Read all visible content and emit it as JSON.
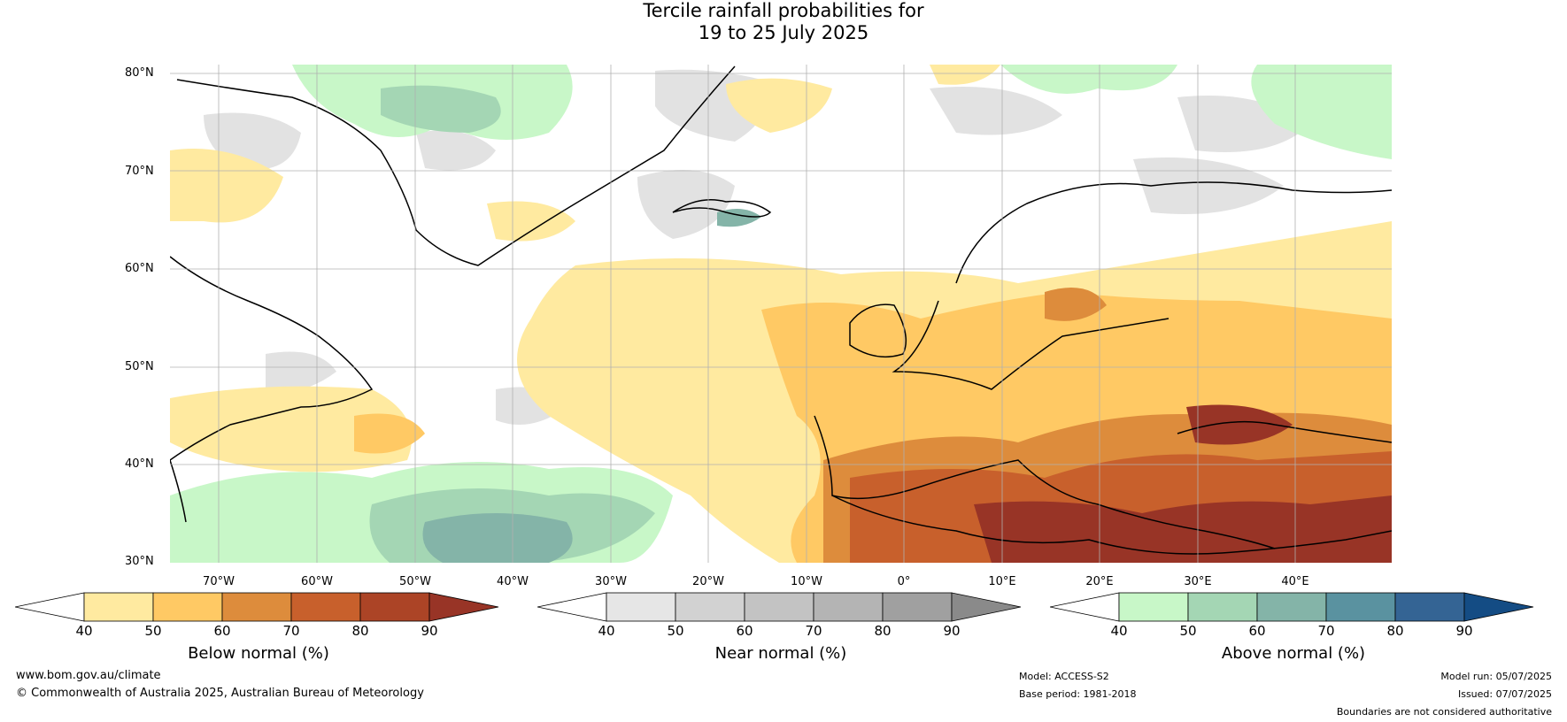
{
  "title_line1": "Tercile rainfall probabilities for",
  "title_line2": "19 to 25 July 2025",
  "lat_labels": [
    "80°N",
    "70°N",
    "60°N",
    "50°N",
    "40°N",
    "30°N"
  ],
  "lon_labels": [
    "70°W",
    "60°W",
    "50°W",
    "40°W",
    "30°W",
    "20°W",
    "10°W",
    "0°",
    "10°E",
    "20°E",
    "30°E",
    "40°E"
  ],
  "colorbars": {
    "below": {
      "label": "Below normal (%)",
      "ticks": [
        "40",
        "50",
        "60",
        "70",
        "80",
        "90"
      ],
      "colors": [
        "#ffffff",
        "#ffeaa0",
        "#ffc964",
        "#dd8c3c",
        "#c8602c",
        "#ac4426",
        "#983426"
      ]
    },
    "near": {
      "label": "Near normal (%)",
      "ticks": [
        "40",
        "50",
        "60",
        "70",
        "80",
        "90"
      ],
      "colors": [
        "#ffffff",
        "#e6e6e6",
        "#d2d2d2",
        "#c3c3c3",
        "#b4b4b4",
        "#a0a0a0",
        "#8a8a8a"
      ]
    },
    "above": {
      "label": "Above normal (%)",
      "ticks": [
        "40",
        "50",
        "60",
        "70",
        "80",
        "90"
      ],
      "colors": [
        "#ffffff",
        "#c8f7c8",
        "#a4d6b4",
        "#84b4a8",
        "#5a92a0",
        "#346494",
        "#144c84"
      ]
    }
  },
  "footer": {
    "website": "www.bom.gov.au/climate",
    "copyright": "© Commonwealth of Australia 2025, Australian Bureau of Meteorology",
    "model": "Model: ACCESS-S2",
    "base_period": "Base period: 1981-2018",
    "model_run": "Model run: 05/07/2025",
    "issued": "Issued: 07/07/2025",
    "disclaimer": "Boundaries are not considered authoritative"
  }
}
